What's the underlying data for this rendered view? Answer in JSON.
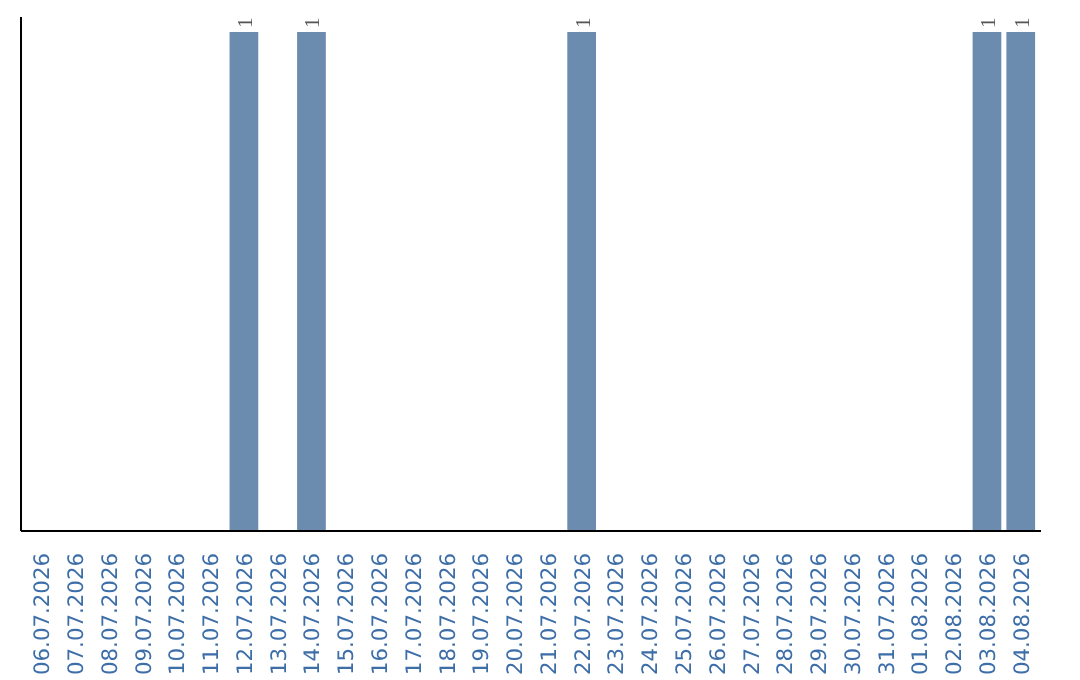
{
  "chart_data": {
    "type": "bar",
    "categories": [
      "06.07.2026",
      "07.07.2026",
      "08.07.2026",
      "09.07.2026",
      "10.07.2026",
      "11.07.2026",
      "12.07.2026",
      "13.07.2026",
      "14.07.2026",
      "15.07.2026",
      "16.07.2026",
      "17.07.2026",
      "18.07.2026",
      "19.07.2026",
      "20.07.2026",
      "21.07.2026",
      "22.07.2026",
      "23.07.2026",
      "24.07.2026",
      "25.07.2026",
      "26.07.2026",
      "27.07.2026",
      "28.07.2026",
      "29.07.2026",
      "30.07.2026",
      "31.07.2026",
      "01.08.2026",
      "02.08.2026",
      "03.08.2026",
      "04.08.2026"
    ],
    "values": [
      0,
      0,
      0,
      0,
      0,
      0,
      1,
      0,
      1,
      0,
      0,
      0,
      0,
      0,
      0,
      0,
      1,
      0,
      0,
      0,
      0,
      0,
      0,
      0,
      0,
      0,
      0,
      0,
      1,
      1
    ],
    "value_labels": [
      null,
      null,
      null,
      null,
      null,
      null,
      "1",
      null,
      "1",
      null,
      null,
      null,
      null,
      null,
      null,
      null,
      "1",
      null,
      null,
      null,
      null,
      null,
      null,
      null,
      null,
      null,
      null,
      null,
      "1",
      "1"
    ],
    "color": "#6b8cae",
    "grid": false,
    "tick_labels": "x"
  }
}
